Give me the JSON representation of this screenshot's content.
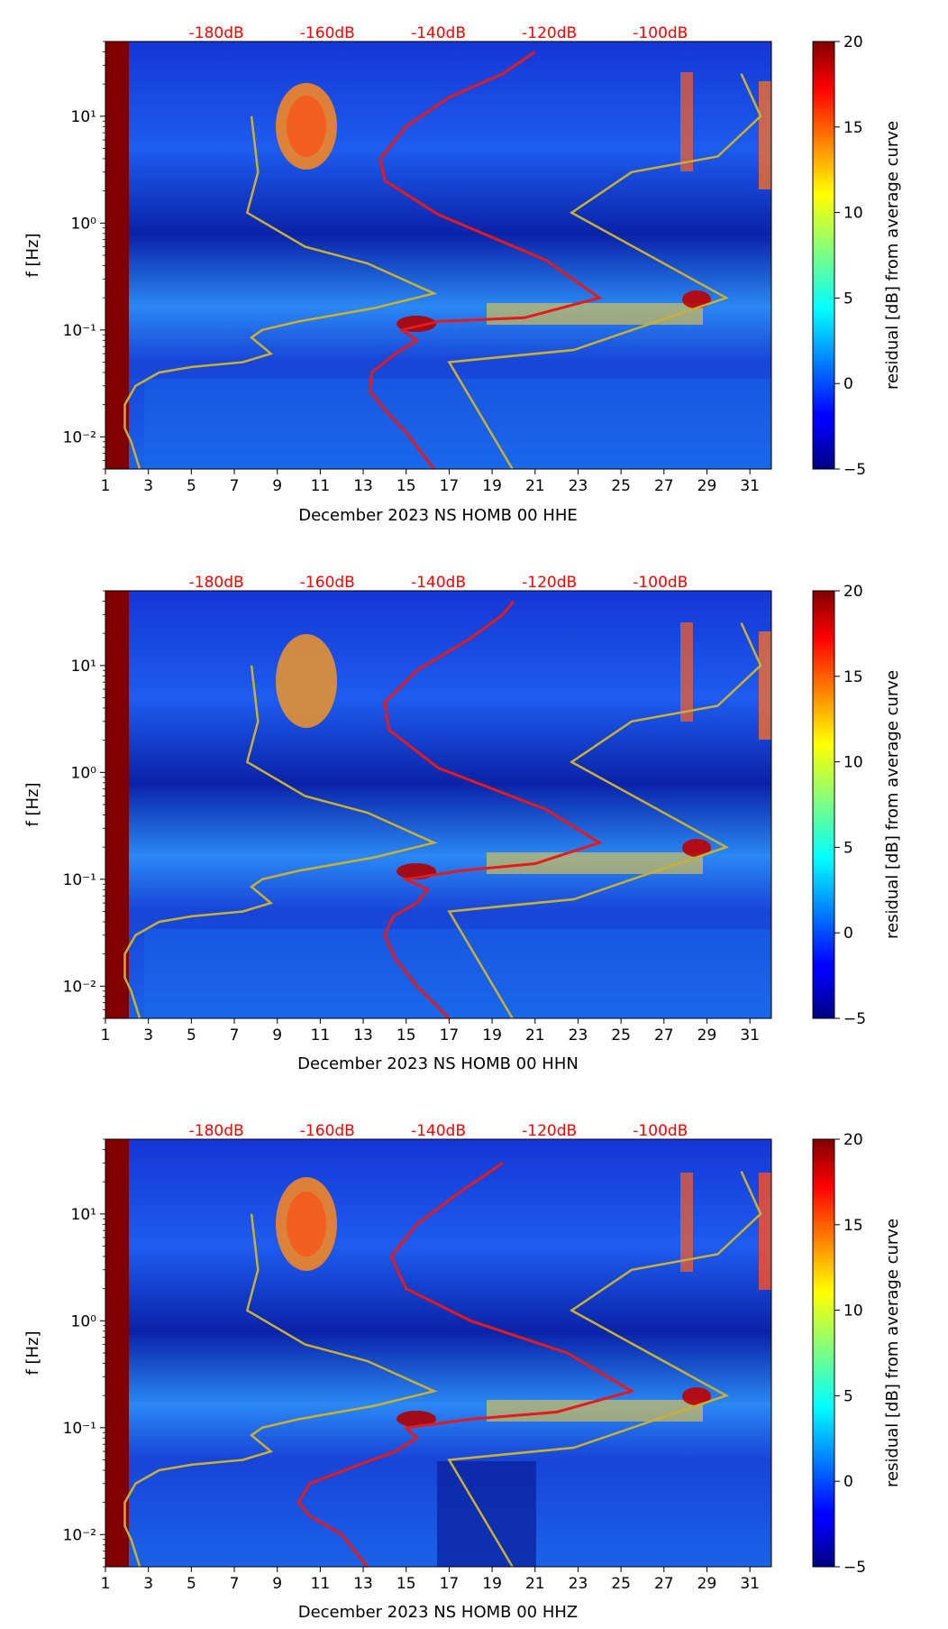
{
  "colors": {
    "noise_model": "#c8b034",
    "average_curve": "#e41a1c",
    "db_label": "#ff0000",
    "saturated": "#800000"
  },
  "colorbar": {
    "label": "residual [dB] from average curve",
    "ticks": [
      "20",
      "15",
      "10",
      "5",
      "0",
      "−5"
    ],
    "range": [
      -5,
      20
    ],
    "colormap": "jet"
  },
  "chart_data": [
    {
      "type": "heatmap",
      "title": "",
      "xlabel": "December 2023 NS HOMB 00 HHE",
      "ylabel": "f [Hz]",
      "x_ticks": [
        "1",
        "3",
        "5",
        "7",
        "9",
        "11",
        "13",
        "15",
        "17",
        "19",
        "21",
        "23",
        "25",
        "27",
        "29",
        "31"
      ],
      "y_ticks": [
        "10¹",
        "10⁰",
        "10⁻¹",
        "10⁻²"
      ],
      "top_ticks": [
        "-180dB",
        "-160dB",
        "-140dB",
        "-120dB",
        "-100dB"
      ],
      "xlim": [
        1,
        32
      ],
      "ylim_hz": [
        0.005,
        50
      ],
      "noise_model_curve": [
        [
          19.95,
          0.005
        ],
        [
          17.0,
          0.05
        ],
        [
          22.8,
          0.065
        ],
        [
          29.9,
          0.2
        ],
        [
          22.7,
          1.25
        ],
        [
          25.5,
          3.0
        ],
        [
          29.5,
          4.2
        ],
        [
          31.5,
          10.0
        ],
        [
          30.6,
          25
        ]
      ],
      "noise_model_curve_low": [
        [
          2.6,
          0.005
        ],
        [
          2.2,
          0.009
        ],
        [
          1.9,
          0.012
        ],
        [
          1.9,
          0.02
        ],
        [
          2.4,
          0.03
        ],
        [
          3.5,
          0.04
        ],
        [
          5.0,
          0.045
        ],
        [
          7.4,
          0.05
        ],
        [
          8.7,
          0.06
        ],
        [
          7.8,
          0.085
        ],
        [
          8.3,
          0.1
        ],
        [
          10.0,
          0.12
        ],
        [
          13.5,
          0.16
        ],
        [
          16.3,
          0.22
        ],
        [
          13.2,
          0.42
        ],
        [
          10.3,
          0.6
        ],
        [
          7.6,
          1.25
        ],
        [
          8.1,
          3.0
        ],
        [
          7.8,
          10.0
        ]
      ],
      "average_curve": [
        [
          16.3,
          0.005
        ],
        [
          15.0,
          0.011
        ],
        [
          14.0,
          0.018
        ],
        [
          13.3,
          0.027
        ],
        [
          13.4,
          0.04
        ],
        [
          14.5,
          0.06
        ],
        [
          15.5,
          0.08
        ],
        [
          14.8,
          0.1
        ],
        [
          16.5,
          0.12
        ],
        [
          20.5,
          0.13
        ],
        [
          24.0,
          0.2
        ],
        [
          21.5,
          0.45
        ],
        [
          16.5,
          1.2
        ],
        [
          14.0,
          2.5
        ],
        [
          13.8,
          4.0
        ],
        [
          15.0,
          8.0
        ],
        [
          17.0,
          15
        ],
        [
          19.5,
          25
        ],
        [
          21.0,
          40
        ]
      ]
    },
    {
      "type": "heatmap",
      "title": "",
      "xlabel": "December 2023 NS HOMB 00 HHN",
      "ylabel": "f [Hz]",
      "x_ticks": [
        "1",
        "3",
        "5",
        "7",
        "9",
        "11",
        "13",
        "15",
        "17",
        "19",
        "21",
        "23",
        "25",
        "27",
        "29",
        "31"
      ],
      "y_ticks": [
        "10¹",
        "10⁰",
        "10⁻¹",
        "10⁻²"
      ],
      "top_ticks": [
        "-180dB",
        "-160dB",
        "-140dB",
        "-120dB",
        "-100dB"
      ],
      "xlim": [
        1,
        32
      ],
      "ylim_hz": [
        0.005,
        50
      ],
      "noise_model_curve": [
        [
          19.95,
          0.005
        ],
        [
          17.0,
          0.05
        ],
        [
          22.8,
          0.065
        ],
        [
          29.9,
          0.2
        ],
        [
          22.7,
          1.25
        ],
        [
          25.5,
          3.0
        ],
        [
          29.5,
          4.2
        ],
        [
          31.5,
          10.0
        ],
        [
          30.6,
          25
        ]
      ],
      "noise_model_curve_low": [
        [
          2.6,
          0.005
        ],
        [
          2.2,
          0.009
        ],
        [
          1.9,
          0.012
        ],
        [
          1.9,
          0.02
        ],
        [
          2.4,
          0.03
        ],
        [
          3.5,
          0.04
        ],
        [
          5.0,
          0.045
        ],
        [
          7.4,
          0.05
        ],
        [
          8.7,
          0.06
        ],
        [
          7.8,
          0.085
        ],
        [
          8.3,
          0.1
        ],
        [
          10.0,
          0.12
        ],
        [
          13.5,
          0.16
        ],
        [
          16.3,
          0.22
        ],
        [
          13.2,
          0.42
        ],
        [
          10.3,
          0.6
        ],
        [
          7.6,
          1.25
        ],
        [
          8.1,
          3.0
        ],
        [
          7.8,
          10.0
        ]
      ],
      "average_curve": [
        [
          17.0,
          0.005
        ],
        [
          15.5,
          0.01
        ],
        [
          14.5,
          0.018
        ],
        [
          14.0,
          0.03
        ],
        [
          14.4,
          0.045
        ],
        [
          15.5,
          0.06
        ],
        [
          16.0,
          0.08
        ],
        [
          15.0,
          0.1
        ],
        [
          17.5,
          0.12
        ],
        [
          21.0,
          0.14
        ],
        [
          24.0,
          0.22
        ],
        [
          21.5,
          0.45
        ],
        [
          16.5,
          1.1
        ],
        [
          14.2,
          2.5
        ],
        [
          14.0,
          4.5
        ],
        [
          15.5,
          9
        ],
        [
          18.0,
          18
        ],
        [
          19.5,
          30
        ],
        [
          20.0,
          40
        ]
      ]
    },
    {
      "type": "heatmap",
      "title": "",
      "xlabel": "December 2023 NS HOMB 00 HHZ",
      "ylabel": "f [Hz]",
      "x_ticks": [
        "1",
        "3",
        "5",
        "7",
        "9",
        "11",
        "13",
        "15",
        "17",
        "19",
        "21",
        "23",
        "25",
        "27",
        "29",
        "31"
      ],
      "y_ticks": [
        "10¹",
        "10⁰",
        "10⁻¹",
        "10⁻²"
      ],
      "top_ticks": [
        "-180dB",
        "-160dB",
        "-140dB",
        "-120dB",
        "-100dB"
      ],
      "xlim": [
        1,
        32
      ],
      "ylim_hz": [
        0.005,
        50
      ],
      "noise_model_curve": [
        [
          19.95,
          0.005
        ],
        [
          17.0,
          0.05
        ],
        [
          22.8,
          0.065
        ],
        [
          29.9,
          0.2
        ],
        [
          22.7,
          1.25
        ],
        [
          25.5,
          3.0
        ],
        [
          29.5,
          4.2
        ],
        [
          31.5,
          10.0
        ],
        [
          30.6,
          25
        ]
      ],
      "noise_model_curve_low": [
        [
          2.6,
          0.005
        ],
        [
          2.2,
          0.009
        ],
        [
          1.9,
          0.012
        ],
        [
          1.9,
          0.02
        ],
        [
          2.4,
          0.03
        ],
        [
          3.5,
          0.04
        ],
        [
          5.0,
          0.045
        ],
        [
          7.4,
          0.05
        ],
        [
          8.7,
          0.06
        ],
        [
          7.8,
          0.085
        ],
        [
          8.3,
          0.1
        ],
        [
          10.0,
          0.12
        ],
        [
          13.5,
          0.16
        ],
        [
          16.3,
          0.22
        ],
        [
          13.2,
          0.42
        ],
        [
          10.3,
          0.6
        ],
        [
          7.6,
          1.25
        ],
        [
          8.1,
          3.0
        ],
        [
          7.8,
          10.0
        ]
      ],
      "average_curve": [
        [
          13.2,
          0.005
        ],
        [
          12.0,
          0.01
        ],
        [
          10.5,
          0.015
        ],
        [
          10.0,
          0.02
        ],
        [
          10.5,
          0.03
        ],
        [
          12.8,
          0.045
        ],
        [
          14.5,
          0.06
        ],
        [
          15.5,
          0.08
        ],
        [
          15.0,
          0.1
        ],
        [
          18.0,
          0.12
        ],
        [
          22.0,
          0.14
        ],
        [
          25.5,
          0.22
        ],
        [
          22.5,
          0.5
        ],
        [
          18.0,
          1.0
        ],
        [
          15.0,
          2.0
        ],
        [
          14.3,
          4.0
        ],
        [
          15.5,
          8.0
        ],
        [
          17.5,
          16
        ],
        [
          19.5,
          30
        ]
      ]
    }
  ]
}
